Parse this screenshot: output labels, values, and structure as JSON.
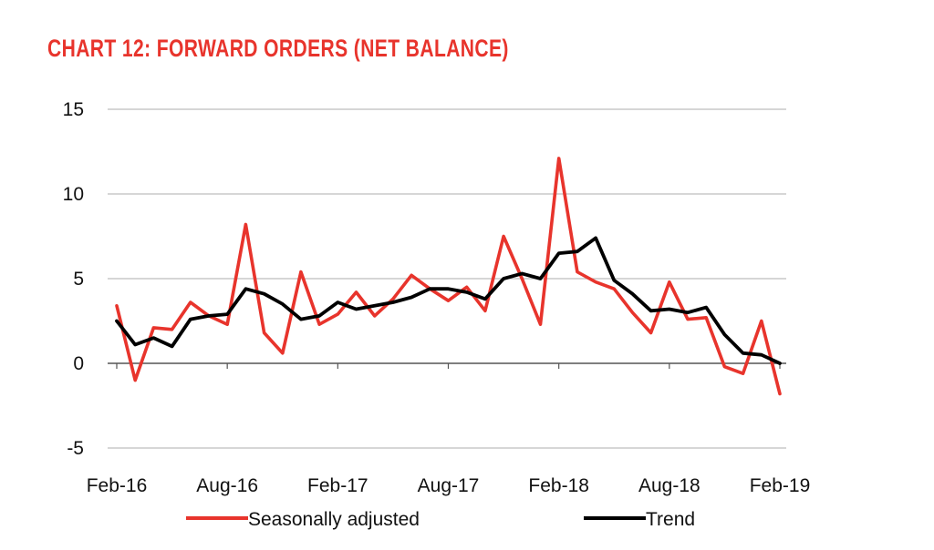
{
  "chart_data": {
    "type": "line",
    "title": "CHART 12: FORWARD ORDERS (NET BALANCE)",
    "xlabel": "",
    "ylabel": "",
    "ylim": [
      -5,
      15
    ],
    "yticks": [
      15,
      10,
      5,
      0,
      -5
    ],
    "grid": true,
    "legend_position": "bottom",
    "x_tick_labels": [
      "Feb-16",
      "Aug-16",
      "Feb-17",
      "Aug-17",
      "Feb-18",
      "Aug-18",
      "Feb-19"
    ],
    "x": [
      "Feb-16",
      "Mar-16",
      "Apr-16",
      "May-16",
      "Jun-16",
      "Jul-16",
      "Aug-16",
      "Sep-16",
      "Oct-16",
      "Nov-16",
      "Dec-16",
      "Jan-17",
      "Feb-17",
      "Mar-17",
      "Apr-17",
      "May-17",
      "Jun-17",
      "Jul-17",
      "Aug-17",
      "Sep-17",
      "Oct-17",
      "Nov-17",
      "Dec-17",
      "Jan-18",
      "Feb-18",
      "Mar-18",
      "Apr-18",
      "May-18",
      "Jun-18",
      "Jul-18",
      "Aug-18",
      "Sep-18",
      "Oct-18",
      "Nov-18",
      "Dec-18",
      "Jan-19",
      "Feb-19"
    ],
    "series": [
      {
        "name": "Seasonally adjusted",
        "color": "#e8342c",
        "values": [
          3.4,
          -1.0,
          2.1,
          2.0,
          3.6,
          2.8,
          2.3,
          8.2,
          1.8,
          0.6,
          5.4,
          2.3,
          2.9,
          4.2,
          2.8,
          3.8,
          5.2,
          4.4,
          3.7,
          4.5,
          3.1,
          7.5,
          5.0,
          2.3,
          12.1,
          5.4,
          4.8,
          4.4,
          3.0,
          1.8,
          4.8,
          2.6,
          2.7,
          -0.2,
          -0.6,
          2.5,
          -1.8
        ]
      },
      {
        "name": "Trend",
        "color": "#000000",
        "values": [
          2.5,
          1.1,
          1.5,
          1.0,
          2.6,
          2.8,
          2.9,
          4.4,
          4.1,
          3.5,
          2.6,
          2.8,
          3.6,
          3.2,
          3.4,
          3.6,
          3.9,
          4.4,
          4.4,
          4.2,
          3.8,
          5.0,
          5.3,
          5.0,
          6.5,
          6.6,
          7.4,
          4.9,
          4.1,
          3.1,
          3.2,
          3.0,
          3.3,
          1.7,
          0.6,
          0.5,
          0.0
        ]
      }
    ]
  }
}
